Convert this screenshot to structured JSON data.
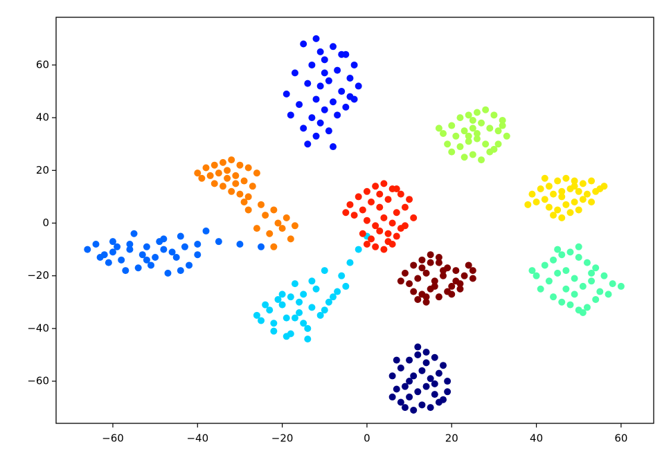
{
  "chart_data": {
    "type": "scatter",
    "xlim": [
      -73.4,
      67.7
    ],
    "ylim": [
      -76,
      78.1
    ],
    "xticks": [
      {
        "value": -60,
        "label": "−60"
      },
      {
        "value": -40,
        "label": "−40"
      },
      {
        "value": -20,
        "label": "−20"
      },
      0,
      20,
      40,
      60
    ],
    "yticks": [
      {
        "value": -60,
        "label": "−60"
      },
      {
        "value": -40,
        "label": "−40"
      },
      {
        "value": -20,
        "label": "−20"
      },
      0,
      20,
      40,
      60
    ],
    "grid": false,
    "series": [
      {
        "color": "#0010ff",
        "x": [
          -15,
          -12,
          -8,
          -5,
          -3,
          -10,
          -13,
          -17,
          -19,
          -7,
          -4,
          -9,
          -11,
          -14,
          -6,
          -2,
          -16,
          -12,
          -8,
          -10,
          -13,
          -5,
          -7,
          -11,
          -15,
          -9,
          -4,
          -12,
          -14,
          -8,
          -6,
          -10,
          -18,
          -3,
          -11
        ],
        "values": [
          68,
          70,
          67,
          64,
          60,
          62,
          60,
          57,
          49,
          58,
          55,
          54,
          52,
          53,
          50,
          52,
          45,
          47,
          46,
          43,
          40,
          44,
          41,
          38,
          36,
          35,
          48,
          33,
          30,
          29,
          64,
          57,
          41,
          47,
          65
        ]
      },
      {
        "color": "#ff7f00",
        "x": [
          -40,
          -38,
          -36,
          -34,
          -32,
          -30,
          -28,
          -26,
          -39,
          -37,
          -35,
          -33,
          -31,
          -29,
          -27,
          -36,
          -34,
          -32,
          -30,
          -28,
          -33,
          -31,
          -29,
          -25,
          -24,
          -22,
          -20,
          -23,
          -21,
          -18,
          -26,
          -28,
          -19,
          -22,
          -17
        ],
        "values": [
          19,
          21,
          22,
          23,
          24,
          22,
          21,
          19,
          17,
          18,
          19,
          20,
          18,
          16,
          14,
          15,
          14,
          12,
          11,
          10,
          17,
          15,
          8,
          7,
          3,
          5,
          -2,
          -4,
          0,
          -6,
          -2,
          5,
          2,
          -9,
          -1
        ]
      },
      {
        "color": "#0066ff",
        "x": [
          -66,
          -64,
          -62,
          -60,
          -58,
          -56,
          -54,
          -52,
          -50,
          -48,
          -46,
          -44,
          -42,
          -40,
          -38,
          -63,
          -61,
          -59,
          -57,
          -55,
          -53,
          -51,
          -49,
          -47,
          -45,
          -43,
          -60,
          -56,
          -52,
          -48,
          -44,
          -35,
          -30,
          -25,
          -40
        ],
        "values": [
          -10,
          -8,
          -12,
          -7,
          -14,
          -10,
          -17,
          -9,
          -13,
          -6,
          -11,
          -5,
          -16,
          -8,
          -3,
          -13,
          -15,
          -9,
          -18,
          -4,
          -12,
          -16,
          -7,
          -19,
          -13,
          -9,
          -11,
          -8,
          -14,
          -10,
          -18,
          -7,
          -8,
          -9,
          -12
        ]
      },
      {
        "color": "#00d4ff",
        "x": [
          -26,
          -24,
          -22,
          -20,
          -18,
          -16,
          -14,
          -12,
          -10,
          -8,
          -25,
          -23,
          -21,
          -19,
          -17,
          -15,
          -13,
          -11,
          -9,
          -7,
          -22,
          -19,
          -16,
          -13,
          -20,
          -17,
          -14,
          -18,
          -6,
          -4,
          -2,
          0,
          -10,
          -5,
          -15
        ],
        "values": [
          -35,
          -31,
          -38,
          -27,
          -42,
          -30,
          -40,
          -25,
          -33,
          -28,
          -37,
          -33,
          -29,
          -36,
          -23,
          -38,
          -32,
          -35,
          -30,
          -26,
          -41,
          -43,
          -34,
          -22,
          -31,
          -36,
          -44,
          -28,
          -20,
          -15,
          -10,
          -5,
          -18,
          -24,
          -27
        ]
      },
      {
        "color": "#ff2000",
        "x": [
          -4,
          -2,
          0,
          2,
          4,
          6,
          8,
          10,
          -3,
          -1,
          1,
          3,
          5,
          7,
          9,
          11,
          0,
          2,
          4,
          6,
          8,
          -1,
          1,
          3,
          5,
          7,
          2,
          4,
          6,
          -5,
          9,
          3,
          0,
          5,
          7
        ],
        "values": [
          7,
          10,
          12,
          14,
          15,
          13,
          11,
          9,
          3,
          5,
          8,
          6,
          9,
          4,
          6,
          2,
          1,
          -1,
          2,
          0,
          -2,
          -4,
          -6,
          -3,
          -7,
          -5,
          -9,
          -10,
          -8,
          4,
          -1,
          11,
          -8,
          -4,
          13
        ]
      },
      {
        "color": "#800000",
        "x": [
          9,
          11,
          13,
          15,
          17,
          19,
          21,
          23,
          25,
          10,
          12,
          14,
          16,
          18,
          20,
          22,
          24,
          11,
          13,
          15,
          17,
          19,
          21,
          12,
          14,
          16,
          18,
          20,
          13,
          15,
          8,
          22,
          17,
          25,
          14
        ],
        "values": [
          -19,
          -16,
          -14,
          -15,
          -13,
          -17,
          -18,
          -20,
          -21,
          -23,
          -21,
          -19,
          -22,
          -18,
          -24,
          -23,
          -16,
          -26,
          -27,
          -25,
          -28,
          -26,
          -22,
          -29,
          -30,
          -24,
          -20,
          -27,
          -17,
          -12,
          -22,
          -25,
          -15,
          -18,
          -28
        ]
      },
      {
        "color": "#00007f",
        "x": [
          6,
          8,
          10,
          12,
          14,
          16,
          18,
          19,
          7,
          9,
          11,
          13,
          15,
          17,
          6,
          8,
          10,
          12,
          14,
          16,
          18,
          9,
          11,
          13,
          15,
          17,
          12,
          14,
          10,
          16,
          19,
          7
        ],
        "values": [
          -58,
          -55,
          -52,
          -50,
          -49,
          -51,
          -54,
          -60,
          -63,
          -62,
          -58,
          -56,
          -59,
          -57,
          -66,
          -68,
          -66,
          -64,
          -62,
          -65,
          -67,
          -70,
          -71,
          -69,
          -70,
          -68,
          -47,
          -53,
          -60,
          -61,
          -64,
          -52
        ]
      },
      {
        "color": "#aaff4d",
        "x": [
          18,
          20,
          22,
          24,
          26,
          28,
          30,
          32,
          19,
          21,
          23,
          25,
          27,
          29,
          31,
          33,
          22,
          24,
          26,
          28,
          30,
          20,
          23,
          25,
          27,
          29,
          31,
          17,
          32,
          25,
          26,
          24
        ],
        "values": [
          34,
          37,
          40,
          41,
          42,
          43,
          41,
          39,
          30,
          33,
          35,
          36,
          38,
          36,
          35,
          33,
          29,
          31,
          32,
          30,
          28,
          27,
          25,
          26,
          24,
          27,
          30,
          36,
          37,
          39,
          34,
          33
        ]
      },
      {
        "color": "#ffe600",
        "x": [
          39,
          41,
          43,
          45,
          47,
          49,
          51,
          53,
          55,
          40,
          42,
          44,
          46,
          48,
          50,
          52,
          54,
          43,
          45,
          47,
          49,
          51,
          44,
          46,
          48,
          50,
          38,
          56,
          42,
          53,
          46,
          49
        ],
        "values": [
          11,
          13,
          14,
          16,
          17,
          16,
          15,
          16,
          13,
          8,
          9,
          11,
          12,
          13,
          12,
          11,
          12,
          6,
          5,
          7,
          8,
          9,
          3,
          2,
          4,
          5,
          7,
          14,
          17,
          8,
          10,
          14
        ]
      },
      {
        "color": "#4dffaa",
        "x": [
          40,
          42,
          44,
          46,
          48,
          50,
          52,
          54,
          56,
          58,
          41,
          43,
          45,
          47,
          49,
          51,
          53,
          55,
          57,
          44,
          46,
          48,
          50,
          52,
          54,
          47,
          49,
          51,
          45,
          53,
          60,
          39,
          50
        ],
        "values": [
          -20,
          -16,
          -14,
          -12,
          -11,
          -13,
          -15,
          -17,
          -20,
          -23,
          -25,
          -22,
          -19,
          -18,
          -21,
          -24,
          -22,
          -26,
          -27,
          -28,
          -30,
          -31,
          -33,
          -32,
          -29,
          -25,
          -27,
          -34,
          -10,
          -19,
          -24,
          -18,
          -9
        ]
      }
    ]
  }
}
